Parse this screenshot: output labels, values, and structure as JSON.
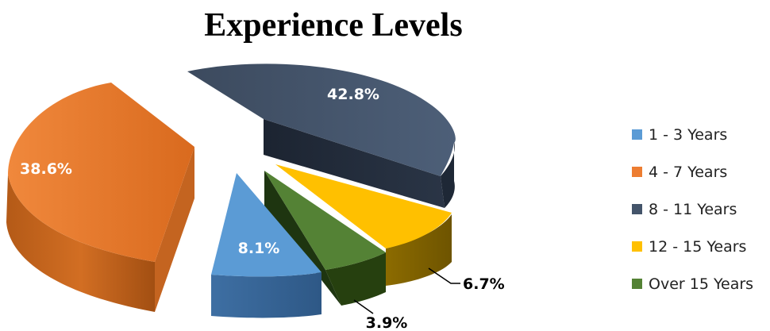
{
  "chart_data": {
    "type": "pie",
    "title": "Experience Levels",
    "legend_position": "right",
    "slices": [
      {
        "label": "1 - 3 Years",
        "value": 8.1,
        "display": "8.1%",
        "color": "#5B9BD5",
        "label_inside": true
      },
      {
        "label": "4 - 7 Years",
        "value": 38.6,
        "display": "38.6%",
        "color": "#ED7D31",
        "label_inside": true
      },
      {
        "label": "8 - 11 Years",
        "value": 42.8,
        "display": "42.8%",
        "color": "#44546A",
        "label_inside": true
      },
      {
        "label": "12 - 15 Years",
        "value": 6.7,
        "display": "6.7%",
        "color": "#FFC000",
        "label_inside": false
      },
      {
        "label": "Over 15 Years",
        "value": 3.9,
        "display": "3.9%",
        "color": "#548235",
        "label_inside": false
      }
    ]
  }
}
